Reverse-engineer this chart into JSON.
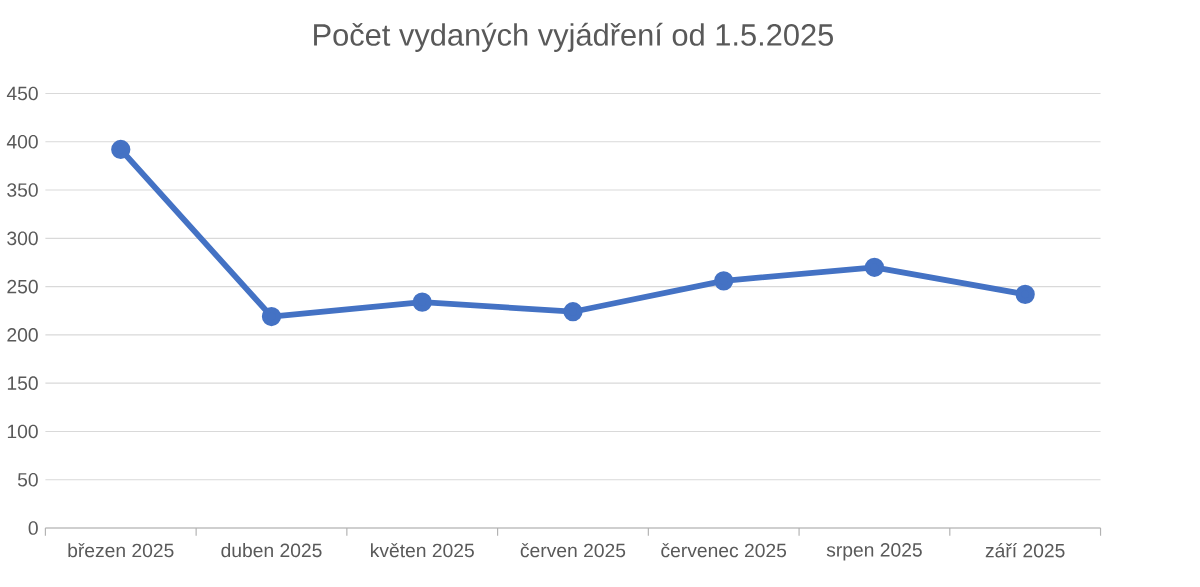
{
  "chart_data": {
    "type": "line",
    "title": "Počet vydaných vyjádření od 1.5.2025",
    "categories": [
      "březen 2025",
      "duben 2025",
      "květen 2025",
      "červen 2025",
      "červenec 2025",
      "srpen 2025",
      "září 2025"
    ],
    "values": [
      392,
      219,
      234,
      224,
      256,
      270,
      242
    ],
    "color": "#4472c4",
    "marker": "circle",
    "line_style": "solid",
    "ylim": [
      0,
      450
    ],
    "yticks": [
      0,
      50,
      100,
      150,
      200,
      250,
      300,
      350,
      400,
      450
    ],
    "grid": "y"
  }
}
